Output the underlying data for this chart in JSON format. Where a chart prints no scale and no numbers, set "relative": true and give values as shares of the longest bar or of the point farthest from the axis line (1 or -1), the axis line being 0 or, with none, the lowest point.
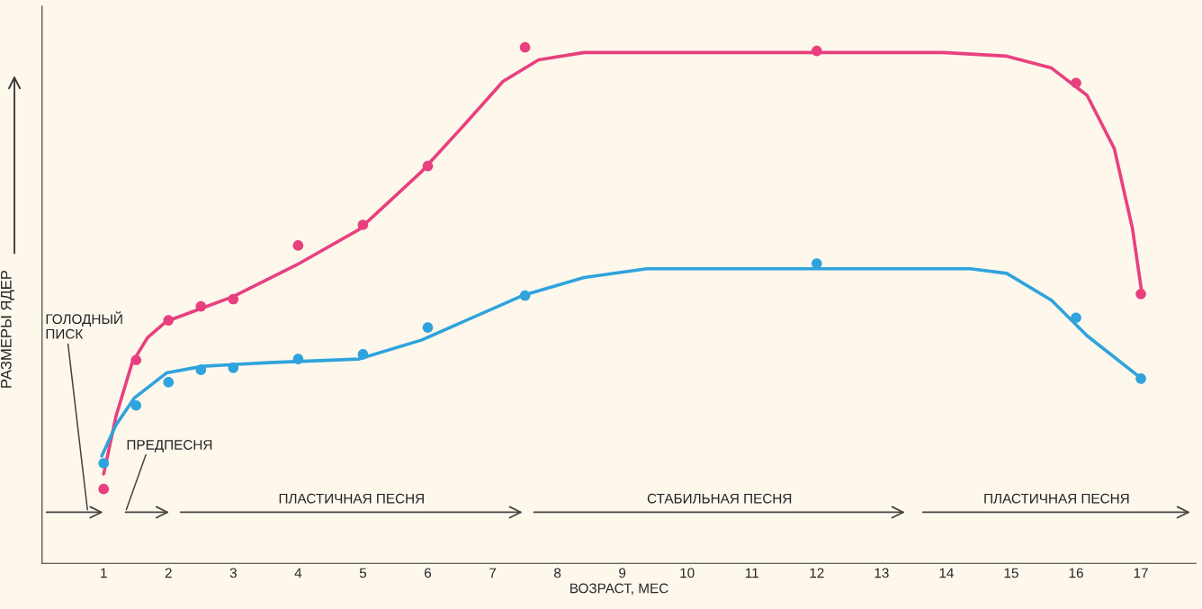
{
  "chart_data": {
    "type": "line",
    "relative": true,
    "xlabel": "ВОЗРАСТ, МЕС",
    "ylabel": "РАЗМЕРЫ ЯДЕР",
    "xlim": [
      0.05,
      17.85
    ],
    "xticks": [
      1,
      2,
      3,
      4,
      5,
      6,
      7,
      8,
      9,
      10,
      11,
      12,
      13,
      14,
      15,
      16,
      17
    ],
    "grid": false,
    "legend": false,
    "series": [
      {
        "marker": "none",
        "color": "#e8407e",
        "x": [
          1,
          1.19,
          1.44,
          1.68,
          1.97,
          2.53,
          3.0,
          3.97,
          4.94,
          5.91,
          6.6,
          7.16,
          7.71,
          8.41,
          9.79,
          11.87,
          13.95,
          14.93,
          15.62,
          16.17,
          16.59,
          16.87,
          17.01
        ],
        "values": [
          0.173,
          0.285,
          0.389,
          0.438,
          0.469,
          0.495,
          0.517,
          0.578,
          0.647,
          0.76,
          0.855,
          0.934,
          0.976,
          0.99,
          0.99,
          0.99,
          0.99,
          0.983,
          0.96,
          0.907,
          0.804,
          0.649,
          0.528
        ]
      },
      {
        "marker": "none",
        "color": "#2fa3dc",
        "x": [
          0.97,
          1.19,
          1.47,
          1.97,
          2.53,
          3.55,
          4.94,
          5.91,
          7.46,
          8.41,
          9.38,
          11.87,
          14.37,
          14.93,
          15.62,
          16.17,
          17.01
        ],
        "values": [
          0.208,
          0.268,
          0.32,
          0.369,
          0.382,
          0.389,
          0.396,
          0.433,
          0.519,
          0.554,
          0.571,
          0.571,
          0.571,
          0.562,
          0.51,
          0.441,
          0.358
        ]
      },
      {
        "type": "scatter",
        "marker": "circle",
        "color": "#e8407e",
        "x": [
          1,
          1.5,
          2,
          2.5,
          3,
          4,
          5,
          6,
          7.5,
          12,
          16,
          17
        ],
        "values": [
          0.144,
          0.394,
          0.471,
          0.498,
          0.512,
          0.616,
          0.656,
          0.77,
          1.0,
          0.993,
          0.931,
          0.522
        ]
      },
      {
        "type": "scatter",
        "marker": "circle",
        "color": "#2fa3dc",
        "x": [
          1,
          1.5,
          2,
          2.5,
          3,
          4,
          5,
          6,
          7.5,
          12,
          16,
          17
        ],
        "values": [
          0.194,
          0.306,
          0.351,
          0.375,
          0.379,
          0.396,
          0.405,
          0.457,
          0.519,
          0.581,
          0.476,
          0.358
        ]
      }
    ],
    "annotations": [
      "ГОЛОДНЫЙ\nПИСК",
      "ПРЕДПЕСНЯ",
      "ПЛАСТИЧНАЯ ПЕСНЯ",
      "СТАБИЛЬНАЯ ПЕСНЯ",
      "ПЛАСТИЧНАЯ ПЕСНЯ"
    ]
  }
}
